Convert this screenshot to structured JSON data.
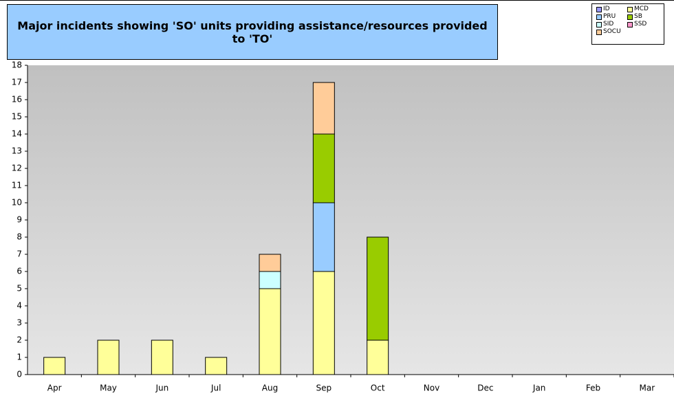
{
  "chart_data": {
    "type": "stacked_bar",
    "title": "Major incidents showing 'SO' units providing assistance/resources provided to 'TO'",
    "categories": [
      "Apr",
      "May",
      "Jun",
      "Jul",
      "Aug",
      "Sep",
      "Oct",
      "Nov",
      "Dec",
      "Jan",
      "Feb",
      "Mar"
    ],
    "series": [
      {
        "name": "ID",
        "color": "#9999ff",
        "values": [
          0,
          0,
          0,
          0,
          0,
          0,
          0,
          0,
          0,
          0,
          0,
          0
        ]
      },
      {
        "name": "MCD",
        "color": "#ffff99",
        "values": [
          1,
          2,
          2,
          1,
          5,
          6,
          2,
          0,
          0,
          0,
          0,
          0
        ]
      },
      {
        "name": "PRU",
        "color": "#99ccff",
        "values": [
          0,
          0,
          0,
          0,
          0,
          4,
          0,
          0,
          0,
          0,
          0,
          0
        ]
      },
      {
        "name": "SB",
        "color": "#99cc00",
        "values": [
          0,
          0,
          0,
          0,
          0,
          4,
          6,
          0,
          0,
          0,
          0,
          0
        ]
      },
      {
        "name": "SID",
        "color": "#ccffff",
        "values": [
          0,
          0,
          0,
          0,
          1,
          0,
          0,
          0,
          0,
          0,
          0,
          0
        ]
      },
      {
        "name": "SSD",
        "color": "#ff99cc",
        "values": [
          0,
          0,
          0,
          0,
          0,
          0,
          0,
          0,
          0,
          0,
          0,
          0
        ]
      },
      {
        "name": "SOCU",
        "color": "#ffcc99",
        "values": [
          0,
          0,
          0,
          0,
          1,
          3,
          0,
          0,
          0,
          0,
          0,
          0
        ]
      }
    ],
    "ylim": [
      0,
      18
    ],
    "yticks": [
      0,
      1,
      2,
      3,
      4,
      5,
      6,
      7,
      8,
      9,
      10,
      11,
      12,
      13,
      14,
      15,
      16,
      17,
      18
    ],
    "legend": "top-right"
  }
}
